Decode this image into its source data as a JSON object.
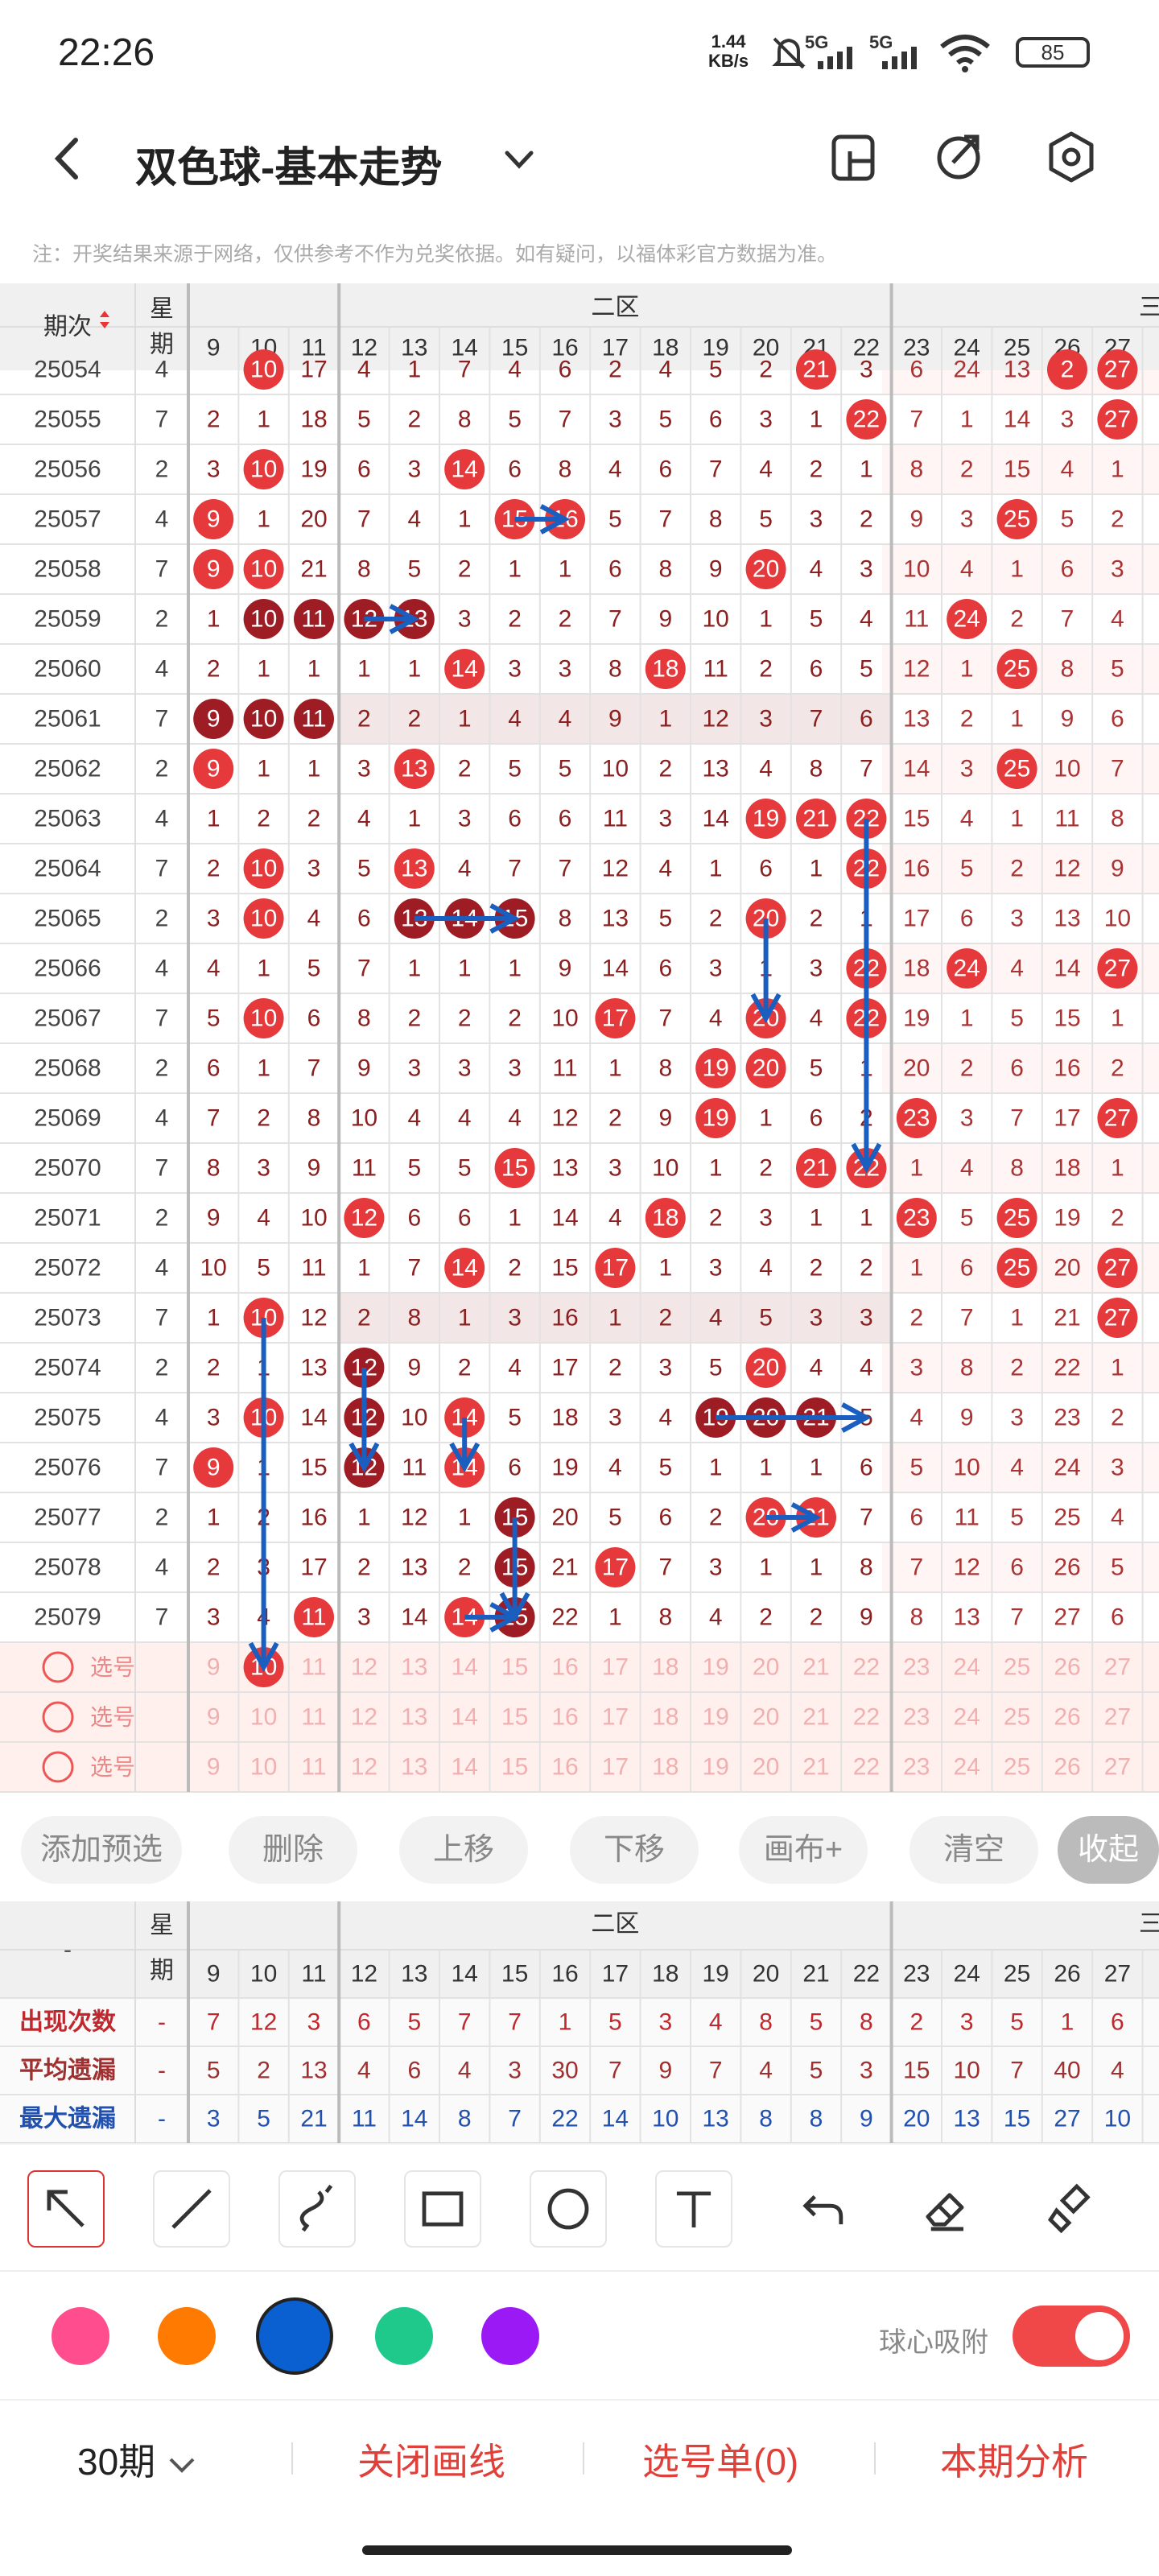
{
  "status": {
    "time": "22:26",
    "speed_value": "1.44",
    "speed_unit": "KB/s",
    "signal_1": "5G",
    "signal_2": "5G",
    "battery": "85"
  },
  "header": {
    "title": "双色球-基本走势"
  },
  "disclaimer": "注：开奖结果来源于网络，仅供参考不作为兑奖依据。如有疑问，以福体彩官方数据为准。",
  "table": {
    "period_header": "期次",
    "week_header_1": "星",
    "week_header_2": "期",
    "zone_label": "二区",
    "zone_label_next": "三",
    "columns": [
      "9",
      "10",
      "11",
      "12",
      "13",
      "14",
      "15",
      "16",
      "17",
      "18",
      "19",
      "20",
      "21",
      "22",
      "23",
      "24",
      "25",
      "26",
      "27"
    ],
    "rows": [
      {
        "p": "25054",
        "w": "4",
        "c": [
          "",
          "10",
          "17",
          "4",
          "1",
          "7",
          "4",
          "6",
          "2",
          "4",
          "5",
          "2",
          "21",
          "3",
          "6",
          "24",
          "13",
          "2",
          "27"
        ],
        "b": [
          1,
          12,
          17,
          18
        ]
      },
      {
        "p": "25055",
        "w": "7",
        "c": [
          "2",
          "1",
          "18",
          "5",
          "2",
          "8",
          "5",
          "7",
          "3",
          "5",
          "6",
          "3",
          "1",
          "22",
          "7",
          "1",
          "14",
          "3",
          "27"
        ],
        "b": [
          13,
          18
        ]
      },
      {
        "p": "25056",
        "w": "2",
        "c": [
          "3",
          "10",
          "19",
          "6",
          "3",
          "14",
          "6",
          "8",
          "4",
          "6",
          "7",
          "4",
          "2",
          "1",
          "8",
          "2",
          "15",
          "4",
          "1"
        ],
        "b": [
          1,
          5
        ]
      },
      {
        "p": "25057",
        "w": "4",
        "c": [
          "9",
          "1",
          "20",
          "7",
          "4",
          "1",
          "15",
          "16",
          "5",
          "7",
          "8",
          "5",
          "3",
          "2",
          "9",
          "3",
          "25",
          "5",
          "2"
        ],
        "b": [
          0,
          6,
          7,
          16
        ]
      },
      {
        "p": "25058",
        "w": "7",
        "c": [
          "9",
          "10",
          "21",
          "8",
          "5",
          "2",
          "1",
          "1",
          "6",
          "8",
          "9",
          "20",
          "4",
          "3",
          "10",
          "4",
          "1",
          "6",
          "3"
        ],
        "b": [
          0,
          1,
          11
        ]
      },
      {
        "p": "25059",
        "w": "2",
        "c": [
          "1",
          "10",
          "11",
          "12",
          "13",
          "3",
          "2",
          "2",
          "7",
          "9",
          "10",
          "1",
          "5",
          "4",
          "11",
          "24",
          "2",
          "7",
          "4"
        ],
        "b": [
          1,
          2,
          3,
          4,
          15
        ],
        "d": [
          1,
          2,
          3,
          4
        ]
      },
      {
        "p": "25060",
        "w": "4",
        "c": [
          "2",
          "1",
          "1",
          "1",
          "1",
          "14",
          "3",
          "3",
          "8",
          "18",
          "11",
          "2",
          "6",
          "5",
          "12",
          "1",
          "25",
          "8",
          "5"
        ],
        "b": [
          5,
          9,
          16
        ]
      },
      {
        "p": "25061",
        "w": "7",
        "c": [
          "9",
          "10",
          "11",
          "2",
          "2",
          "1",
          "4",
          "4",
          "9",
          "1",
          "12",
          "3",
          "7",
          "6",
          "13",
          "2",
          "1",
          "9",
          "6"
        ],
        "b": [
          0,
          1,
          2
        ],
        "d": [
          0,
          1,
          2
        ]
      },
      {
        "p": "25062",
        "w": "2",
        "c": [
          "9",
          "1",
          "1",
          "3",
          "13",
          "2",
          "5",
          "5",
          "10",
          "2",
          "13",
          "4",
          "8",
          "7",
          "14",
          "3",
          "25",
          "10",
          "7"
        ],
        "b": [
          0,
          4,
          16
        ]
      },
      {
        "p": "25063",
        "w": "4",
        "c": [
          "1",
          "2",
          "2",
          "4",
          "1",
          "3",
          "6",
          "6",
          "11",
          "3",
          "14",
          "19",
          "21",
          "22",
          "15",
          "4",
          "1",
          "11",
          "8"
        ],
        "b": [
          11,
          12,
          13
        ]
      },
      {
        "p": "25064",
        "w": "7",
        "c": [
          "2",
          "10",
          "3",
          "5",
          "13",
          "4",
          "7",
          "7",
          "12",
          "4",
          "1",
          "6",
          "1",
          "22",
          "16",
          "5",
          "2",
          "12",
          "9"
        ],
        "b": [
          1,
          4,
          13
        ]
      },
      {
        "p": "25065",
        "w": "2",
        "c": [
          "3",
          "10",
          "4",
          "6",
          "13",
          "14",
          "15",
          "8",
          "13",
          "5",
          "2",
          "20",
          "2",
          "1",
          "17",
          "6",
          "3",
          "13",
          "10"
        ],
        "b": [
          1,
          4,
          5,
          6,
          11
        ],
        "d": [
          4,
          5,
          6
        ]
      },
      {
        "p": "25066",
        "w": "4",
        "c": [
          "4",
          "1",
          "5",
          "7",
          "1",
          "1",
          "1",
          "9",
          "14",
          "6",
          "3",
          "1",
          "3",
          "22",
          "18",
          "24",
          "4",
          "14",
          "27"
        ],
        "b": [
          13,
          15,
          18
        ]
      },
      {
        "p": "25067",
        "w": "7",
        "c": [
          "5",
          "10",
          "6",
          "8",
          "2",
          "2",
          "2",
          "10",
          "17",
          "7",
          "4",
          "20",
          "4",
          "22",
          "19",
          "1",
          "5",
          "15",
          "1"
        ],
        "b": [
          1,
          8,
          11,
          13
        ]
      },
      {
        "p": "25068",
        "w": "2",
        "c": [
          "6",
          "1",
          "7",
          "9",
          "3",
          "3",
          "3",
          "11",
          "1",
          "8",
          "19",
          "20",
          "5",
          "1",
          "20",
          "2",
          "6",
          "16",
          "2"
        ],
        "b": [
          10,
          11
        ]
      },
      {
        "p": "25069",
        "w": "4",
        "c": [
          "7",
          "2",
          "8",
          "10",
          "4",
          "4",
          "4",
          "12",
          "2",
          "9",
          "19",
          "1",
          "6",
          "2",
          "23",
          "3",
          "7",
          "17",
          "27"
        ],
        "b": [
          10,
          14,
          18
        ]
      },
      {
        "p": "25070",
        "w": "7",
        "c": [
          "8",
          "3",
          "9",
          "11",
          "5",
          "5",
          "15",
          "13",
          "3",
          "10",
          "1",
          "2",
          "21",
          "22",
          "1",
          "4",
          "8",
          "18",
          "1"
        ],
        "b": [
          6,
          12,
          13
        ]
      },
      {
        "p": "25071",
        "w": "2",
        "c": [
          "9",
          "4",
          "10",
          "12",
          "6",
          "6",
          "1",
          "14",
          "4",
          "18",
          "2",
          "3",
          "1",
          "1",
          "23",
          "5",
          "25",
          "19",
          "2"
        ],
        "b": [
          3,
          9,
          14,
          16
        ]
      },
      {
        "p": "25072",
        "w": "4",
        "c": [
          "10",
          "5",
          "11",
          "1",
          "7",
          "14",
          "2",
          "15",
          "17",
          "1",
          "3",
          "4",
          "2",
          "2",
          "1",
          "6",
          "25",
          "20",
          "27"
        ],
        "b": [
          5,
          8,
          16,
          18
        ]
      },
      {
        "p": "25073",
        "w": "7",
        "c": [
          "1",
          "10",
          "12",
          "2",
          "8",
          "1",
          "3",
          "16",
          "1",
          "2",
          "4",
          "5",
          "3",
          "3",
          "2",
          "7",
          "1",
          "21",
          "27"
        ],
        "b": [
          1,
          18
        ]
      },
      {
        "p": "25074",
        "w": "2",
        "c": [
          "2",
          "1",
          "13",
          "12",
          "9",
          "2",
          "4",
          "17",
          "2",
          "3",
          "5",
          "20",
          "4",
          "4",
          "3",
          "8",
          "2",
          "22",
          "1"
        ],
        "b": [
          3,
          11
        ],
        "d": [
          3
        ]
      },
      {
        "p": "25075",
        "w": "4",
        "c": [
          "3",
          "10",
          "14",
          "12",
          "10",
          "14",
          "5",
          "18",
          "3",
          "4",
          "19",
          "20",
          "21",
          "5",
          "4",
          "9",
          "3",
          "23",
          "2"
        ],
        "b": [
          1,
          3,
          5,
          10,
          11,
          12
        ],
        "d": [
          3,
          10,
          11,
          12
        ]
      },
      {
        "p": "25076",
        "w": "7",
        "c": [
          "9",
          "1",
          "15",
          "12",
          "11",
          "14",
          "6",
          "19",
          "4",
          "5",
          "1",
          "1",
          "1",
          "6",
          "5",
          "10",
          "4",
          "24",
          "3"
        ],
        "b": [
          0,
          3,
          5
        ],
        "d": [
          3
        ]
      },
      {
        "p": "25077",
        "w": "2",
        "c": [
          "1",
          "2",
          "16",
          "1",
          "12",
          "1",
          "15",
          "20",
          "5",
          "6",
          "2",
          "20",
          "21",
          "7",
          "6",
          "11",
          "5",
          "25",
          "4"
        ],
        "b": [
          6,
          11,
          12
        ],
        "d": [
          6
        ]
      },
      {
        "p": "25078",
        "w": "4",
        "c": [
          "2",
          "3",
          "17",
          "2",
          "13",
          "2",
          "15",
          "21",
          "17",
          "7",
          "3",
          "1",
          "1",
          "8",
          "7",
          "12",
          "6",
          "26",
          "5"
        ],
        "b": [
          6,
          8
        ],
        "d": [
          6
        ]
      },
      {
        "p": "25079",
        "w": "7",
        "c": [
          "3",
          "4",
          "11",
          "3",
          "14",
          "14",
          "15",
          "22",
          "1",
          "8",
          "4",
          "2",
          "2",
          "9",
          "8",
          "13",
          "7",
          "27",
          "6"
        ],
        "b": [
          2,
          5,
          6
        ],
        "d": [
          6
        ]
      }
    ],
    "pick_label": "选号",
    "pick_selected": "10"
  },
  "actions": [
    "添加预选",
    "删除",
    "上移",
    "下移",
    "画布+",
    "清空",
    "收起"
  ],
  "stats": {
    "dash": "-",
    "labels": [
      "出现次数",
      "平均遗漏",
      "最大遗漏"
    ],
    "appear": [
      "7",
      "12",
      "3",
      "6",
      "5",
      "7",
      "7",
      "1",
      "5",
      "3",
      "4",
      "8",
      "5",
      "8",
      "2",
      "3",
      "5",
      "1",
      "6"
    ],
    "avg": [
      "5",
      "2",
      "13",
      "4",
      "6",
      "4",
      "3",
      "30",
      "7",
      "9",
      "7",
      "4",
      "5",
      "3",
      "15",
      "10",
      "7",
      "40",
      "4"
    ],
    "max": [
      "3",
      "5",
      "21",
      "11",
      "14",
      "8",
      "7",
      "22",
      "14",
      "10",
      "13",
      "8",
      "8",
      "9",
      "20",
      "13",
      "15",
      "27",
      "10"
    ]
  },
  "tools": [
    "arrow-icon",
    "line-icon",
    "curve-icon",
    "rectangle-icon",
    "circle-icon",
    "text-icon",
    "undo-icon",
    "eraser-icon",
    "clear-icon"
  ],
  "colors": [
    "#ff4d8d",
    "#ff7a00",
    "#0a5fd1",
    "#1ec98b",
    "#9b19f5"
  ],
  "snap_label": "球心吸附",
  "bottom": {
    "periods": "30期",
    "close_lines": "关闭画线",
    "pick_list": "选号单(0)",
    "analysis": "本期分析"
  },
  "accent": "#e0403a",
  "ball_red": "#e5393b",
  "ball_dark": "#9e1c24",
  "line_blue": "#1a5fc0"
}
